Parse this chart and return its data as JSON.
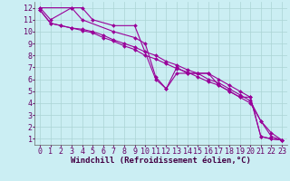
{
  "bg_color": "#cbeef3",
  "grid_color": "#aad4d4",
  "line_color": "#990099",
  "marker": "D",
  "markersize": 2,
  "linewidth": 0.8,
  "xlabel": "Windchill (Refroidissement éolien,°C)",
  "xlabel_fontsize": 6.5,
  "tick_fontsize": 6,
  "xlim": [
    -0.5,
    23.5
  ],
  "ylim": [
    0.5,
    12.5
  ],
  "xticks": [
    0,
    1,
    2,
    3,
    4,
    5,
    6,
    7,
    8,
    9,
    10,
    11,
    12,
    13,
    14,
    15,
    16,
    17,
    18,
    19,
    20,
    21,
    22,
    23
  ],
  "yticks": [
    1,
    2,
    3,
    4,
    5,
    6,
    7,
    8,
    9,
    10,
    11,
    12
  ],
  "line1": [
    [
      0,
      12
    ],
    [
      1,
      11
    ],
    [
      3,
      12
    ],
    [
      4,
      11
    ],
    [
      7,
      10
    ],
    [
      9,
      9.5
    ],
    [
      10,
      9
    ],
    [
      11,
      6.2
    ],
    [
      12,
      5.2
    ],
    [
      13,
      6.5
    ],
    [
      14,
      6.5
    ],
    [
      15,
      6.5
    ],
    [
      16,
      6.5
    ],
    [
      17,
      5.5
    ],
    [
      18,
      5
    ],
    [
      19,
      4.5
    ],
    [
      20,
      4.5
    ],
    [
      21,
      1.2
    ],
    [
      22,
      1
    ],
    [
      23,
      0.9
    ]
  ],
  "line2": [
    [
      0,
      12
    ],
    [
      3,
      12
    ],
    [
      4,
      12
    ],
    [
      5,
      11
    ],
    [
      7,
      10.5
    ],
    [
      9,
      10.5
    ],
    [
      11,
      6
    ],
    [
      12,
      5.2
    ],
    [
      13,
      7
    ],
    [
      14,
      6.5
    ],
    [
      15,
      6.5
    ],
    [
      16,
      6.5
    ],
    [
      17,
      6
    ],
    [
      18,
      5.5
    ],
    [
      19,
      5
    ],
    [
      20,
      4.5
    ],
    [
      21,
      1.2
    ],
    [
      22,
      1
    ],
    [
      23,
      0.9
    ]
  ],
  "line3": [
    [
      0,
      11.8
    ],
    [
      1,
      10.7
    ],
    [
      2,
      10.5
    ],
    [
      3,
      10.3
    ],
    [
      4,
      10.2
    ],
    [
      5,
      10.0
    ],
    [
      6,
      9.7
    ],
    [
      7,
      9.3
    ],
    [
      8,
      9.0
    ],
    [
      9,
      8.7
    ],
    [
      10,
      8.3
    ],
    [
      11,
      8.0
    ],
    [
      12,
      7.5
    ],
    [
      13,
      7.2
    ],
    [
      14,
      6.8
    ],
    [
      15,
      6.5
    ],
    [
      16,
      6.0
    ],
    [
      17,
      5.7
    ],
    [
      18,
      5.2
    ],
    [
      19,
      4.7
    ],
    [
      20,
      4.2
    ],
    [
      21,
      2.5
    ],
    [
      22,
      1.2
    ],
    [
      23,
      0.9
    ]
  ],
  "line4": [
    [
      0,
      11.8
    ],
    [
      1,
      10.7
    ],
    [
      2,
      10.5
    ],
    [
      3,
      10.3
    ],
    [
      4,
      10.1
    ],
    [
      5,
      9.9
    ],
    [
      6,
      9.5
    ],
    [
      7,
      9.2
    ],
    [
      8,
      8.8
    ],
    [
      9,
      8.5
    ],
    [
      10,
      8.0
    ],
    [
      11,
      7.7
    ],
    [
      12,
      7.3
    ],
    [
      13,
      6.9
    ],
    [
      14,
      6.6
    ],
    [
      15,
      6.2
    ],
    [
      16,
      5.8
    ],
    [
      17,
      5.5
    ],
    [
      18,
      5.0
    ],
    [
      19,
      4.5
    ],
    [
      20,
      4.0
    ],
    [
      21,
      2.5
    ],
    [
      22,
      1.5
    ],
    [
      23,
      0.9
    ]
  ]
}
